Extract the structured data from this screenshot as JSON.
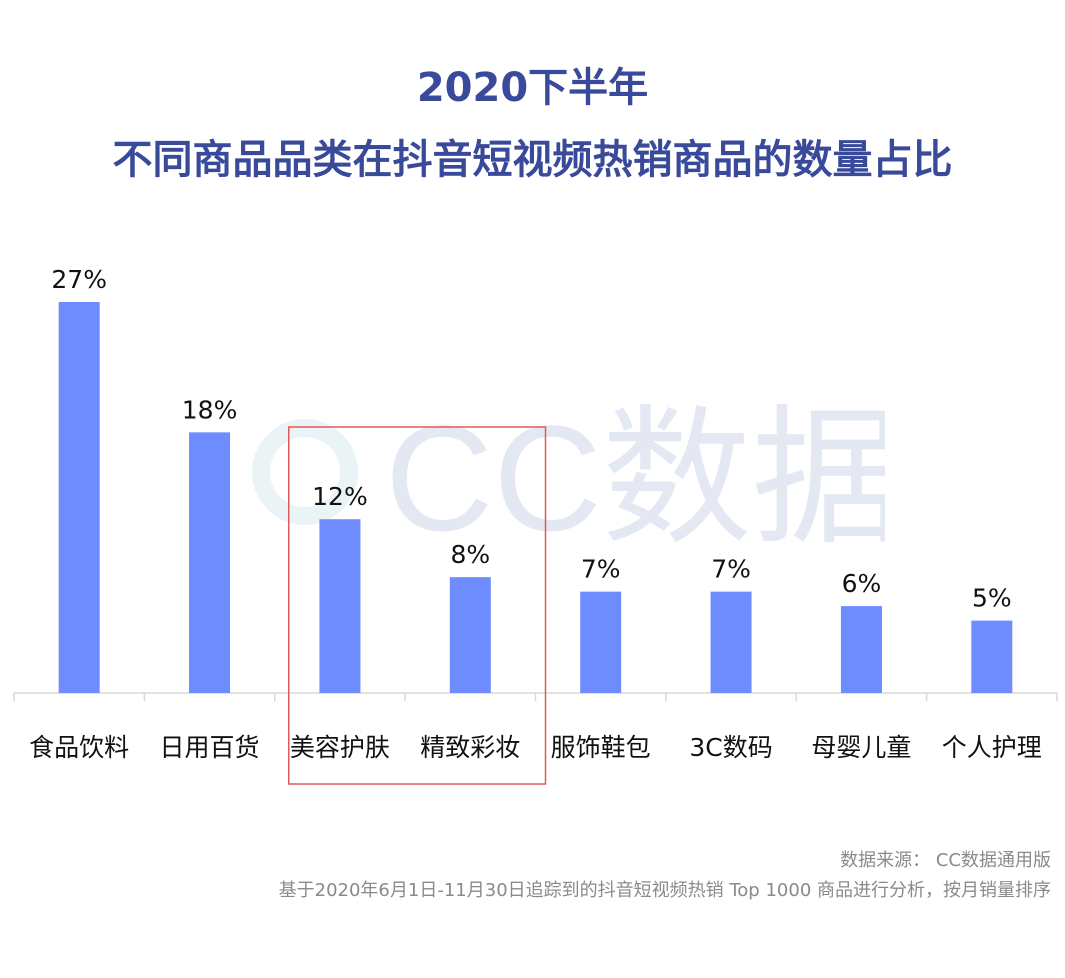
{
  "title_line1": "2020下半年",
  "title_line2": "不同商品品类在抖音短视频热销商品的数量占比",
  "watermark": {
    "text": "CC数据",
    "color": "#e4e8f2"
  },
  "colors": {
    "bar": "#6f8cff",
    "title": "#3a4a9a",
    "highlight": "#e05a5a",
    "axis": "#d8d8d8"
  },
  "chart_data": {
    "type": "bar",
    "title": "2020下半年 不同商品品类在抖音短视频热销商品的数量占比",
    "categories": [
      "食品饮料",
      "日用百货",
      "美容护肤",
      "精致彩妆",
      "服饰鞋包",
      "3C数码",
      "母婴儿童",
      "个人护理"
    ],
    "values": [
      27,
      18,
      12,
      8,
      7,
      7,
      6,
      5
    ],
    "data_labels": [
      "27%",
      "18%",
      "12%",
      "8%",
      "7%",
      "7%",
      "6%",
      "5%"
    ],
    "xlabel": "",
    "ylabel": "",
    "ylim": [
      0,
      27
    ],
    "grid": false,
    "legend": "none",
    "highlighted_categories": [
      "美容护肤",
      "精致彩妆"
    ]
  },
  "footer": {
    "source": "数据来源：  CC数据通用版",
    "note": "基于2020年6月1日-11月30日追踪到的抖音短视频热销 Top 1000 商品进行分析，按月销量排序"
  }
}
